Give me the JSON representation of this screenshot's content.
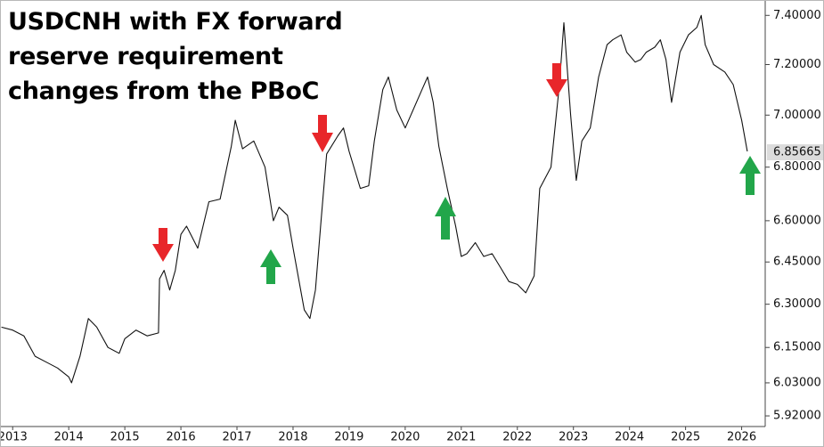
{
  "chart_data": {
    "type": "line",
    "title": "USDCNH with FX forward reserve requirement changes from the PBoC",
    "log_scale": true,
    "xlim": [
      2012.79,
      2026.42
    ],
    "ylim": [
      5.885,
      7.46
    ],
    "xticks": [
      2013,
      2014,
      2015,
      2016,
      2017,
      2018,
      2019,
      2020,
      2021,
      2022,
      2023,
      2024,
      2025,
      2026
    ],
    "yticks": [
      {
        "value": 5.92,
        "label": "5.92000"
      },
      {
        "value": 6.03,
        "label": "6.03000"
      },
      {
        "value": 6.15,
        "label": "6.15000"
      },
      {
        "value": 6.3,
        "label": "6.30000"
      },
      {
        "value": 6.45,
        "label": "6.45000"
      },
      {
        "value": 6.6,
        "label": "6.60000"
      },
      {
        "value": 6.8,
        "label": "6.80000"
      },
      {
        "value": 7.0,
        "label": "7.00000"
      },
      {
        "value": 7.2,
        "label": "7.20000"
      },
      {
        "value": 7.4,
        "label": "7.40000"
      }
    ],
    "last_price": {
      "value": 6.85665,
      "label": "6.85665"
    },
    "series": [
      {
        "name": "USDCNH",
        "color": "#111111",
        "x": [
          2012.8,
          2013.0,
          2013.2,
          2013.4,
          2013.6,
          2013.8,
          2014.0,
          2014.05,
          2014.2,
          2014.35,
          2014.5,
          2014.7,
          2014.9,
          2015.0,
          2015.2,
          2015.4,
          2015.6,
          2015.62,
          2015.7,
          2015.8,
          2015.9,
          2016.0,
          2016.1,
          2016.3,
          2016.5,
          2016.7,
          2016.9,
          2016.97,
          2017.1,
          2017.3,
          2017.5,
          2017.65,
          2017.75,
          2017.9,
          2018.0,
          2018.2,
          2018.3,
          2018.4,
          2018.5,
          2018.6,
          2018.8,
          2018.9,
          2019.0,
          2019.2,
          2019.35,
          2019.45,
          2019.6,
          2019.7,
          2019.85,
          2020.0,
          2020.1,
          2020.3,
          2020.4,
          2020.5,
          2020.6,
          2020.75,
          2020.9,
          2021.0,
          2021.1,
          2021.25,
          2021.4,
          2021.55,
          2021.7,
          2021.85,
          2022.0,
          2022.15,
          2022.3,
          2022.4,
          2022.6,
          2022.75,
          2022.83,
          2022.95,
          2023.05,
          2023.15,
          2023.3,
          2023.45,
          2023.6,
          2023.7,
          2023.85,
          2023.95,
          2024.1,
          2024.2,
          2024.3,
          2024.45,
          2024.55,
          2024.65,
          2024.75,
          2024.9,
          2025.05,
          2025.2,
          2025.28,
          2025.35,
          2025.5,
          2025.7,
          2025.85,
          2026.0,
          2026.1
        ],
        "values": [
          6.22,
          6.21,
          6.19,
          6.12,
          6.1,
          6.08,
          6.05,
          6.03,
          6.12,
          6.25,
          6.22,
          6.15,
          6.13,
          6.18,
          6.21,
          6.19,
          6.2,
          6.39,
          6.42,
          6.35,
          6.42,
          6.55,
          6.58,
          6.5,
          6.67,
          6.68,
          6.88,
          6.98,
          6.87,
          6.9,
          6.8,
          6.6,
          6.65,
          6.62,
          6.5,
          6.28,
          6.25,
          6.35,
          6.6,
          6.85,
          6.92,
          6.95,
          6.86,
          6.72,
          6.73,
          6.9,
          7.1,
          7.15,
          7.02,
          6.95,
          7.0,
          7.1,
          7.15,
          7.05,
          6.88,
          6.72,
          6.58,
          6.47,
          6.48,
          6.52,
          6.47,
          6.48,
          6.43,
          6.38,
          6.37,
          6.34,
          6.4,
          6.72,
          6.8,
          7.12,
          7.37,
          7.0,
          6.75,
          6.9,
          6.95,
          7.15,
          7.28,
          7.3,
          7.32,
          7.25,
          7.21,
          7.22,
          7.25,
          7.27,
          7.3,
          7.22,
          7.05,
          7.25,
          7.32,
          7.35,
          7.4,
          7.28,
          7.2,
          7.17,
          7.12,
          6.98,
          6.86
        ]
      }
    ]
  }
}
